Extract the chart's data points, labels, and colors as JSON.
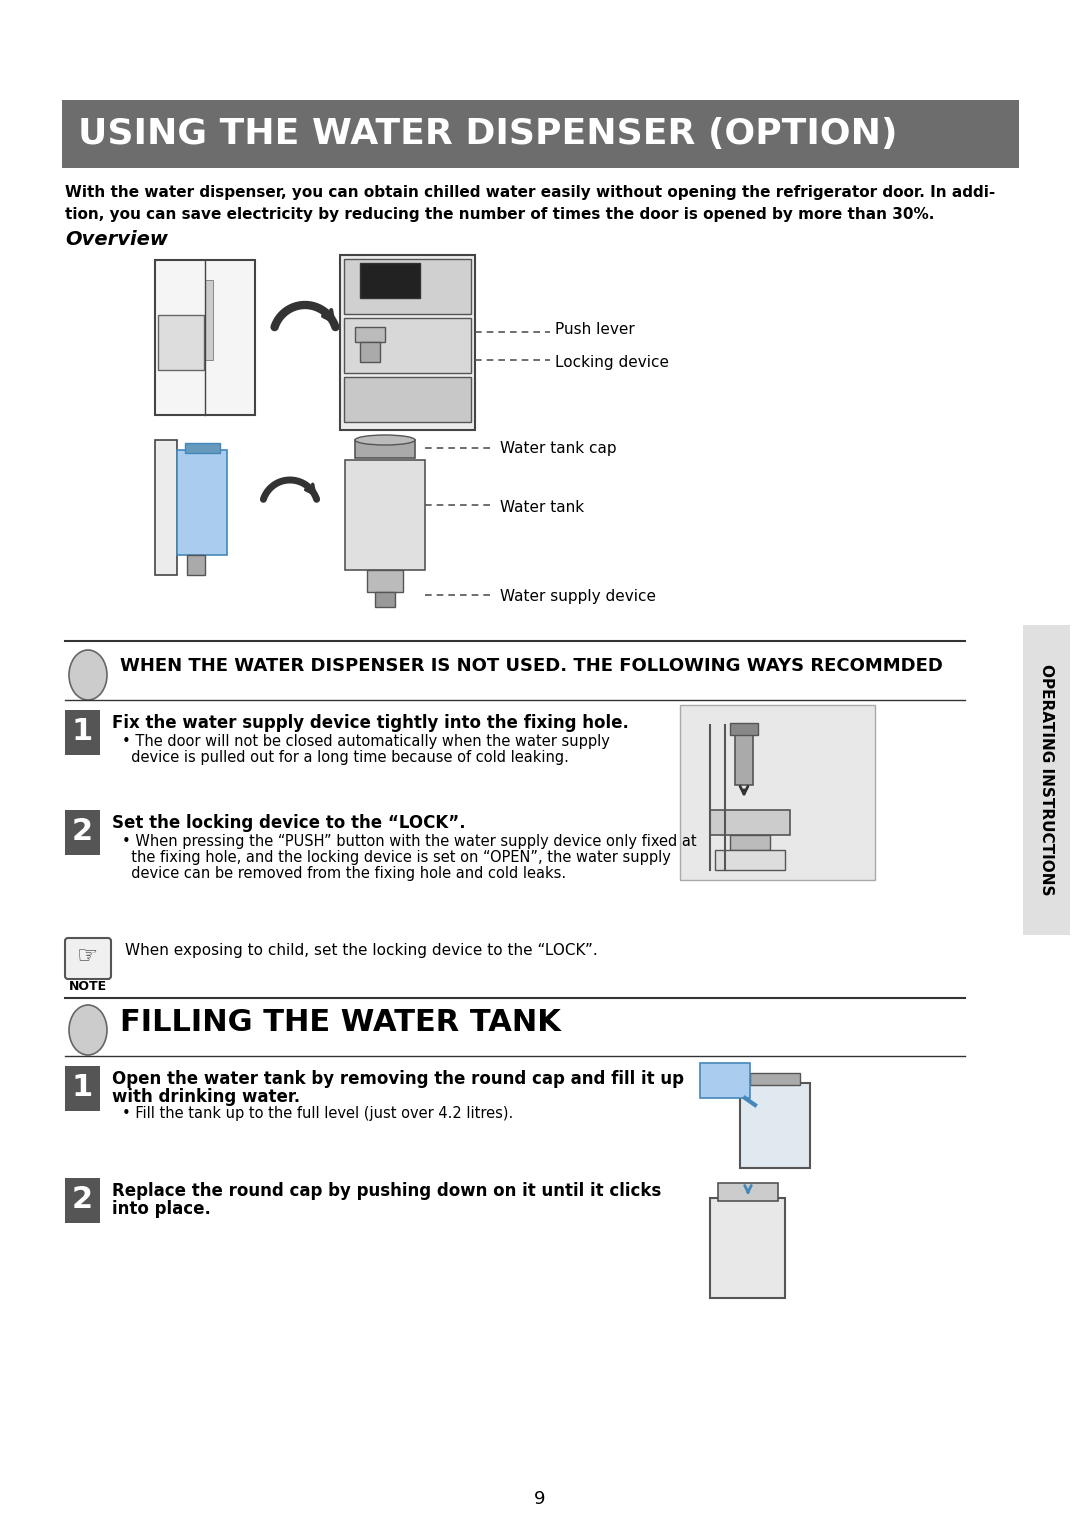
{
  "title": "USING THE WATER DISPENSER (OPTION)",
  "title_bg": "#6d6d6d",
  "title_color": "#ffffff",
  "intro_line1": "With the water dispenser, you can obtain chilled water easily without opening the refrigerator door. In addi-",
  "intro_line2": "tion, you can save electricity by reducing the number of times the door is opened by more than 30%.",
  "overview_label": "Overview",
  "diagram_labels_top": [
    "Push lever",
    "Locking device"
  ],
  "diagram_labels_bot": [
    "Water tank cap",
    "Water tank",
    "Water supply device"
  ],
  "section1_title": "WHEN THE WATER DISPENSER IS NOT USED. THE FOLLOWING WAYS RECOMMDED",
  "step1_title": "Fix the water supply device tightly into the fixing hole.",
  "step1_bullet": "• The door will not be closed automatically when the water supply",
  "step1_bullet2": "  device is pulled out for a long time because of cold leaking.",
  "step2_title": "Set the locking device to the “LOCK”.",
  "step2_bullet": "• When pressing the “PUSH” button with the water supply device only fixed at",
  "step2_bullet2": "  the fixing hole, and the locking device is set on “OPEN”, the water supply",
  "step2_bullet3": "  device can be removed from the fixing hole and cold leaks.",
  "note_text": "When exposing to child, set the locking device to the “LOCK”.",
  "section2_title": "FILLING THE WATER TANK",
  "fill_step1_bold": "Open the water tank by removing the round cap and fill it up",
  "fill_step1_bold2": "with drinking water.",
  "fill_step1_bullet": "• Fill the tank up to the full level (just over 4.2 litres).",
  "fill_step2_bold": "Replace the round cap by pushing down on it until it clicks",
  "fill_step2_bold2": "into place.",
  "page_number": "9",
  "sidebar_text": "OPERATING INSTRUCTIONS",
  "bg_color": "#ffffff",
  "text_color": "#000000",
  "sidebar_bg": "#e0e0e0",
  "section1_bg": "#ffffff",
  "step_badge_color": "#555555"
}
